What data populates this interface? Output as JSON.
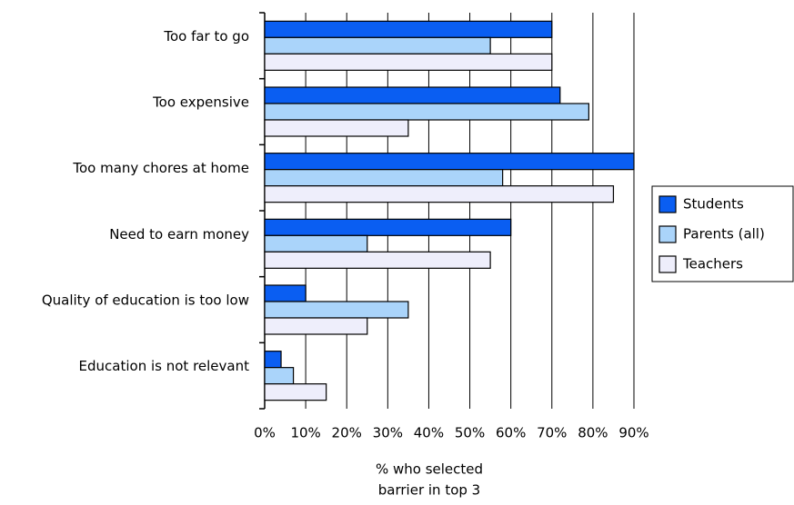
{
  "chart_data": {
    "type": "barh",
    "categories": [
      "Too far to go",
      "Too expensive",
      "Too many chores at home",
      "Need to earn money",
      "Quality of education is too low",
      "Education is not relevant"
    ],
    "series": [
      {
        "name": "Students",
        "color": "#0a5ef2",
        "values": [
          70,
          72,
          90,
          60,
          10,
          4
        ]
      },
      {
        "name": "Parents (all)",
        "color": "#aad4fa",
        "values": [
          55,
          79,
          58,
          25,
          35,
          7
        ]
      },
      {
        "name": "Teachers",
        "color": "#eeeefb",
        "values": [
          70,
          35,
          85,
          55,
          25,
          15
        ]
      }
    ],
    "xlim": [
      0,
      90
    ],
    "xticks": [
      {
        "value": 0,
        "label": "0%"
      },
      {
        "value": 10,
        "label": "10%"
      },
      {
        "value": 20,
        "label": "20%"
      },
      {
        "value": 30,
        "label": "30%"
      },
      {
        "value": 40,
        "label": "40%"
      },
      {
        "value": 50,
        "label": "50%"
      },
      {
        "value": 60,
        "label": "60%"
      },
      {
        "value": 70,
        "label": "70%"
      },
      {
        "value": 80,
        "label": "80%"
      },
      {
        "value": 90,
        "label": "90%"
      }
    ],
    "xlabel": [
      "% who selected",
      "barrier in top 3"
    ],
    "grid": true,
    "legend": "right"
  }
}
